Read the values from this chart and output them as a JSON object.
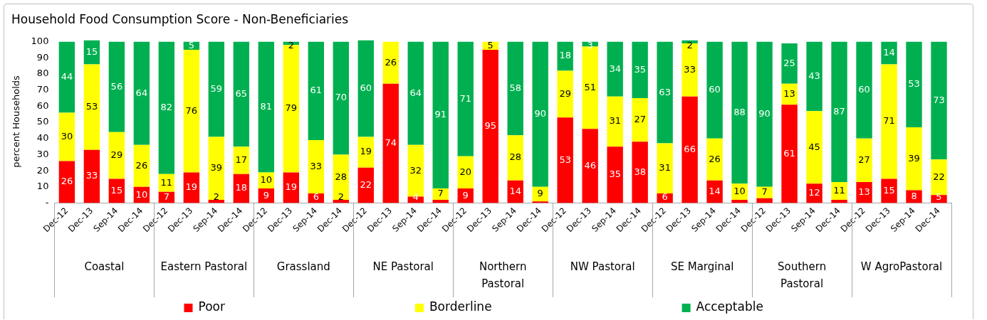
{
  "chart_data": {
    "type": "bar",
    "title": "Household Food Consumption Score - Non-Beneficiaries",
    "ylabel": "percent Households",
    "stacked": true,
    "legend": "bottom",
    "categories": [
      "Dec-12",
      "Dec-13",
      "Sep-14",
      "Dec-14",
      "Dec-12",
      "Dec-13",
      "Sep-14",
      "Dec-14",
      "Dec-12",
      "Dec-13",
      "Sep-14",
      "Dec-14",
      "Dec-12",
      "Dec-13",
      "Sep-14",
      "Dec-14",
      "Dec-12",
      "Dec-13",
      "Sep-14",
      "Dec-14",
      "Dec-12",
      "Dec-13",
      "Sep-14",
      "Dec-14",
      "Dec-12",
      "Dec-13",
      "Sep-14",
      "Dec-14",
      "Dec-12",
      "Dec-13",
      "Sep-14",
      "Dec-14",
      "Dec-12",
      "Dec-13",
      "Sep-14",
      "Dec-14"
    ],
    "annotations": [
      "Coastal",
      "Eastern Pastoral",
      "Grassland",
      "NE Pastoral",
      "Northern Pastoral",
      "NW Pastoral",
      "SE Marginal",
      "Southern Pastoral",
      "W AgroPastoral"
    ],
    "series": [
      {
        "name": "Poor",
        "color": "#ff0000",
        "values": [
          26,
          33,
          15,
          10,
          7,
          19,
          2,
          18,
          9,
          19,
          6,
          2,
          22,
          74,
          4,
          2,
          9,
          95,
          14,
          1,
          53,
          46,
          35,
          38,
          6,
          66,
          14,
          2,
          3,
          61,
          12,
          2,
          13,
          15,
          8,
          5
        ],
        "value_labels": [
          "26",
          "33",
          "15",
          "10",
          "7",
          "19",
          "2",
          "18",
          "9",
          "19",
          "6",
          "2",
          "22",
          "74",
          "4",
          null,
          "9",
          "95",
          "14",
          null,
          "53",
          "46",
          "35",
          "38",
          "6",
          "66",
          "14",
          null,
          null,
          "61",
          "12",
          null,
          "13",
          "15",
          "8",
          "5"
        ]
      },
      {
        "name": "Borderline",
        "color": "#ffff00",
        "values": [
          30,
          53,
          29,
          26,
          11,
          76,
          39,
          17,
          10,
          79,
          33,
          28,
          19,
          26,
          32,
          7,
          20,
          5,
          28,
          9,
          29,
          51,
          31,
          27,
          31,
          33,
          26,
          10,
          7,
          13,
          45,
          11,
          27,
          71,
          39,
          22
        ],
        "value_labels": [
          "30",
          "53",
          "29",
          "26",
          "11",
          "76",
          "39",
          "17",
          "10",
          "79",
          "33",
          "28",
          "19",
          "26",
          "32",
          "7",
          "20",
          "5",
          "28",
          "9",
          "29",
          "51",
          "31",
          "27",
          "31",
          "33",
          "26",
          "10",
          "7",
          "13",
          "45",
          "11",
          "27",
          "71",
          "39",
          "22"
        ]
      },
      {
        "name": "Acceptable",
        "color": "#00b050",
        "values": [
          44,
          15,
          56,
          64,
          82,
          5,
          59,
          65,
          81,
          2,
          61,
          70,
          60,
          null,
          64,
          91,
          71,
          null,
          58,
          90,
          18,
          3,
          34,
          35,
          63,
          2,
          60,
          88,
          90,
          25,
          43,
          87,
          60,
          14,
          53,
          73
        ],
        "value_labels": [
          "44",
          "15",
          "56",
          "64",
          "82",
          "5",
          "59",
          "65",
          "81",
          "2",
          "61",
          "70",
          "60",
          null,
          "64",
          "91",
          "71",
          null,
          "58",
          "90",
          "18",
          "3",
          "34",
          "35",
          "63",
          "2",
          "60",
          "88",
          "90",
          "25",
          "43",
          "87",
          "60",
          "14",
          "53",
          "73"
        ]
      }
    ],
    "ylim": [
      0,
      101
    ],
    "yticks": [
      {
        "value": 0,
        "label": "-"
      },
      10,
      20,
      30,
      40,
      50,
      60,
      70,
      80,
      90,
      100
    ]
  }
}
